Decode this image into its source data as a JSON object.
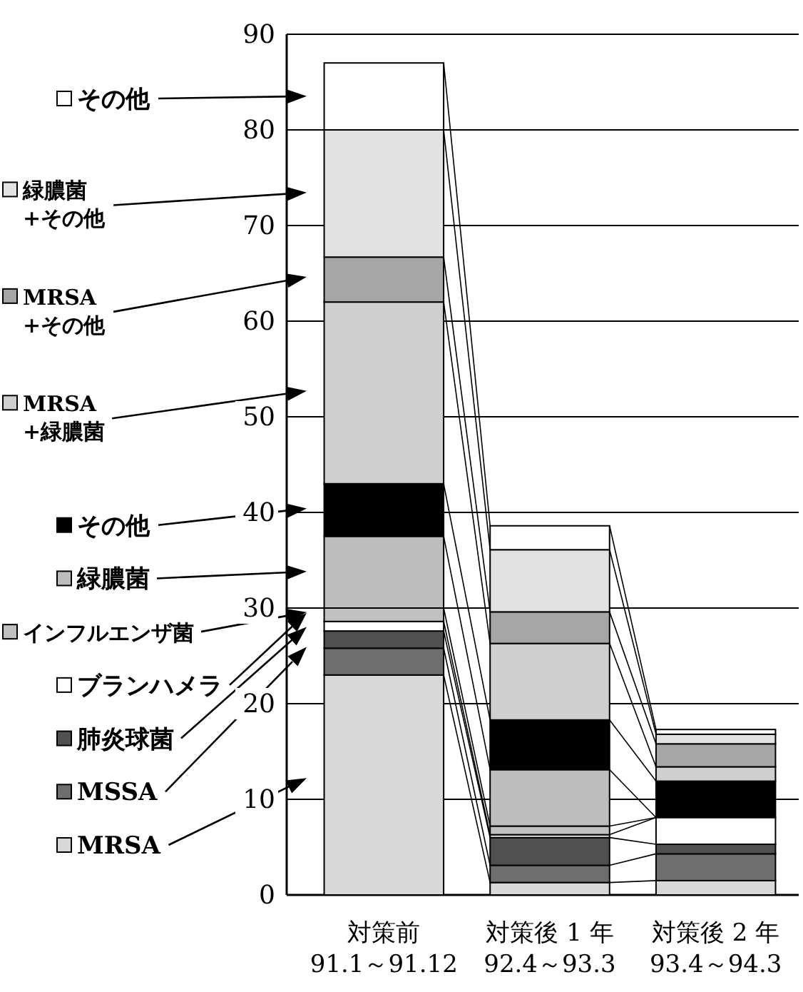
{
  "chart_data": {
    "type": "bar",
    "stacked": true,
    "categories": [
      "対策前\n91.1～91.12",
      "対策後 1 年\n92.4～93.3",
      "対策後 2 年\n93.4～94.3"
    ],
    "ylim": [
      0,
      90
    ],
    "yticks": [
      0,
      10,
      20,
      30,
      40,
      50,
      60,
      70,
      80,
      90
    ],
    "grid": "y",
    "legend": "left",
    "series": [
      {
        "name": "MRSA",
        "color": "#d8d8d8",
        "values": [
          23,
          1.3,
          1.5
        ]
      },
      {
        "name": "MSSA",
        "color": "#6e6e6e",
        "values": [
          2.8,
          1.8,
          2.8
        ]
      },
      {
        "name": "肺炎球菌",
        "color": "#505050",
        "values": [
          1.8,
          2.9,
          1
        ]
      },
      {
        "name": "ブランハメラ",
        "color": "#ffffff",
        "values": [
          1,
          0.3,
          2.8
        ]
      },
      {
        "name": "インフルエンザ菌",
        "color": "#c0c0c0",
        "values": [
          1.4,
          0.9,
          0
        ]
      },
      {
        "name": "緑膿菌",
        "color": "#bdbdbd",
        "values": [
          7.5,
          5.9,
          0
        ]
      },
      {
        "name": "その他",
        "color": "#000000",
        "values": [
          5.5,
          5.2,
          3.8
        ]
      },
      {
        "name": "MRSA\n+緑膿菌",
        "color": "#cfcfcf",
        "values": [
          19,
          8,
          1.5
        ]
      },
      {
        "name": "MRSA\n+その他",
        "color": "#a6a6a6",
        "values": [
          4.7,
          3.3,
          2.4
        ]
      },
      {
        "name": "緑膿菌\n+その他",
        "color": "#e2e2e2",
        "values": [
          13.3,
          6.5,
          1
        ]
      },
      {
        "name": "その他",
        "color": "#ffffff",
        "values": [
          7,
          2.5,
          0.5
        ]
      }
    ]
  }
}
